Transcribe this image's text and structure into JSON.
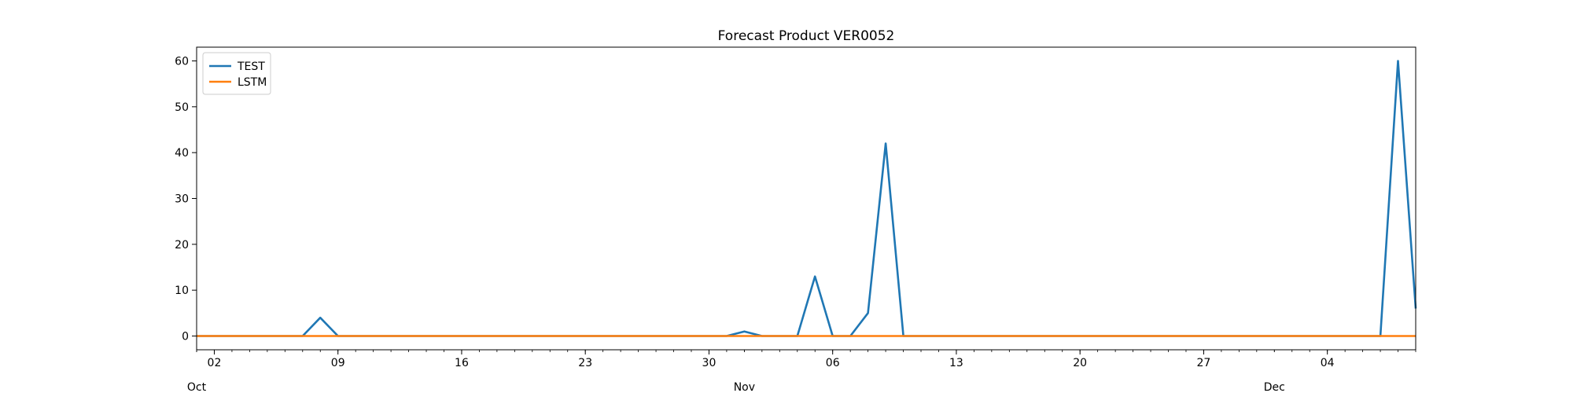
{
  "chart_data": {
    "type": "line",
    "title": "Forecast Product VER0052",
    "xlabel": "",
    "ylabel": "",
    "x_range": [
      "2023-10-01",
      "2023-12-09"
    ],
    "ylim": [
      -3,
      63
    ],
    "y_ticks": [
      0,
      10,
      20,
      30,
      40,
      50,
      60
    ],
    "x_ticks": [
      {
        "date": "2023-10-02",
        "label": "02",
        "sub": "Oct"
      },
      {
        "date": "2023-10-09",
        "label": "09",
        "sub": ""
      },
      {
        "date": "2023-10-16",
        "label": "16",
        "sub": ""
      },
      {
        "date": "2023-10-23",
        "label": "23",
        "sub": ""
      },
      {
        "date": "2023-10-30",
        "label": "30",
        "sub": ""
      },
      {
        "date": "2023-11-06",
        "label": "06",
        "sub": "Nov"
      },
      {
        "date": "2023-11-13",
        "label": "13",
        "sub": ""
      },
      {
        "date": "2023-11-20",
        "label": "20",
        "sub": ""
      },
      {
        "date": "2023-11-27",
        "label": "27",
        "sub": ""
      },
      {
        "date": "2023-12-04",
        "label": "04",
        "sub": "Dec"
      }
    ],
    "month_labels": [
      {
        "date": "2023-10-01",
        "label": "Oct"
      },
      {
        "date": "2023-11-01",
        "label": "Nov"
      },
      {
        "date": "2023-12-01",
        "label": "Dec"
      }
    ],
    "grid": false,
    "legend": "top-left",
    "series": [
      {
        "name": "TEST",
        "color": "#1f77b4",
        "points": [
          [
            "2023-10-01",
            0
          ],
          [
            "2023-10-07",
            0
          ],
          [
            "2023-10-08",
            4
          ],
          [
            "2023-10-09",
            0
          ],
          [
            "2023-10-31",
            0
          ],
          [
            "2023-11-01",
            1
          ],
          [
            "2023-11-02",
            0
          ],
          [
            "2023-11-04",
            0
          ],
          [
            "2023-11-05",
            13
          ],
          [
            "2023-11-06",
            0
          ],
          [
            "2023-11-07",
            0
          ],
          [
            "2023-11-08",
            5
          ],
          [
            "2023-11-09",
            42
          ],
          [
            "2023-11-10",
            0
          ],
          [
            "2023-12-07",
            0
          ],
          [
            "2023-12-08",
            60
          ],
          [
            "2023-12-09",
            6
          ]
        ]
      },
      {
        "name": "LSTM",
        "color": "#ff7f0e",
        "points": [
          [
            "2023-10-01",
            0
          ],
          [
            "2023-12-09",
            0
          ]
        ]
      }
    ]
  }
}
